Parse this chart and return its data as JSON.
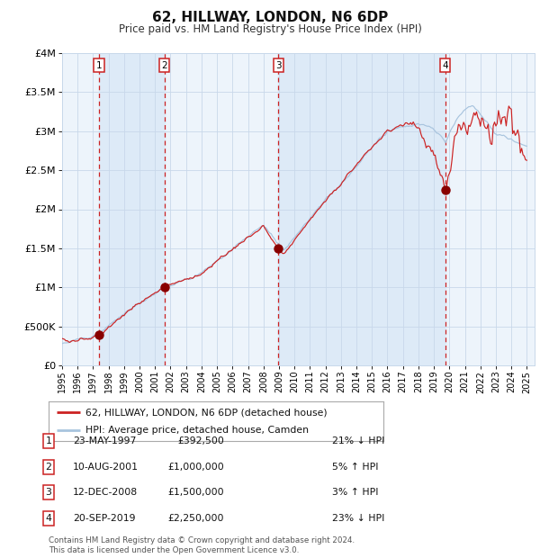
{
  "title": "62, HILLWAY, LONDON, N6 6DP",
  "subtitle": "Price paid vs. HM Land Registry's House Price Index (HPI)",
  "legend_line1": "62, HILLWAY, LONDON, N6 6DP (detached house)",
  "legend_line2": "HPI: Average price, detached house, Camden",
  "footer1": "Contains HM Land Registry data © Crown copyright and database right 2024.",
  "footer2": "This data is licensed under the Open Government Licence v3.0.",
  "transactions": [
    {
      "num": 1,
      "date": "23-MAY-1997",
      "price": 392500,
      "price_str": "£392,500",
      "pct": "21%",
      "dir": "↓",
      "year_x": 1997.38
    },
    {
      "num": 2,
      "date": "10-AUG-2001",
      "price": 1000000,
      "price_str": "£1,000,000",
      "pct": "5%",
      "dir": "↑",
      "year_x": 2001.61
    },
    {
      "num": 3,
      "date": "12-DEC-2008",
      "price": 1500000,
      "price_str": "£1,500,000",
      "pct": "3%",
      "dir": "↑",
      "year_x": 2008.95
    },
    {
      "num": 4,
      "date": "20-SEP-2019",
      "price": 2250000,
      "price_str": "£2,250,000",
      "pct": "23%",
      "dir": "↓",
      "year_x": 2019.72
    }
  ],
  "hpi_color": "#a8c4de",
  "price_color": "#cc2222",
  "dot_color": "#880000",
  "vline_color": "#cc2222",
  "shade_color": "#ddeaf7",
  "grid_color": "#c8d8ea",
  "bg_color": "#edf4fb",
  "ylim": [
    0,
    4000000
  ],
  "yticks": [
    0,
    500000,
    1000000,
    1500000,
    2000000,
    2500000,
    3000000,
    3500000,
    4000000
  ],
  "xlim_start": 1995.0,
  "xlim_end": 2025.5,
  "xticks": [
    1995,
    1996,
    1997,
    1998,
    1999,
    2000,
    2001,
    2002,
    2003,
    2004,
    2005,
    2006,
    2007,
    2008,
    2009,
    2010,
    2011,
    2012,
    2013,
    2014,
    2015,
    2016,
    2017,
    2018,
    2019,
    2020,
    2021,
    2022,
    2023,
    2024,
    2025
  ]
}
